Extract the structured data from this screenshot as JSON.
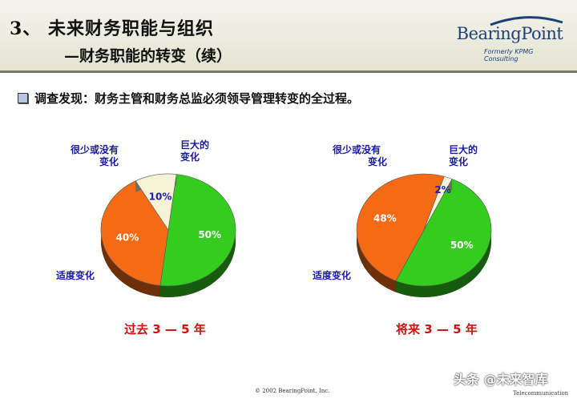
{
  "header": {
    "title": "3、 未来财务职能与组织",
    "subtitle": "—财务职能的转变（续）"
  },
  "logo": {
    "name": "BearingPoint",
    "tagline": "Formerly KPMG Consulting"
  },
  "finding": {
    "text": "调查发现：财务主管和财务总监必须领导管理转变的全过程。"
  },
  "chart_data": [
    {
      "type": "pie",
      "title": "过去 3 — 5 年",
      "slices": [
        {
          "label": "巨大的变化",
          "value": 50,
          "display": "50%",
          "color": "#33cc1f"
        },
        {
          "label": "适度变化",
          "value": 40,
          "display": "40%",
          "color": "#f56a14"
        },
        {
          "label": "很少或没有变化",
          "value": 10,
          "display": "10%",
          "color": "#f6f2d8"
        }
      ]
    },
    {
      "type": "pie",
      "title": "将来 3 — 5 年",
      "slices": [
        {
          "label": "巨大的变化",
          "value": 50,
          "display": "50%",
          "color": "#33cc1f"
        },
        {
          "label": "适度变化",
          "value": 48,
          "display": "48%",
          "color": "#f56a14"
        },
        {
          "label": "很少或没有变化",
          "value": 2,
          "display": "2%",
          "color": "#f6f2d8"
        }
      ]
    }
  ],
  "labels": {
    "left": {
      "little_line1": "很少或没有",
      "little_line2": "变化",
      "huge_line1": "巨大的",
      "huge_line2": "变化",
      "moderate": "适度变化"
    },
    "right": {
      "little_line1": "很少或没有",
      "little_line2": "变化",
      "huge_line1": "巨大的",
      "huge_line2": "变化",
      "moderate": "适度变化"
    }
  },
  "footer": {
    "copyright": "© 2002 BearingPoint, Inc.",
    "watermark": "头条 @未来智库",
    "telecom": "Telecommunication"
  }
}
